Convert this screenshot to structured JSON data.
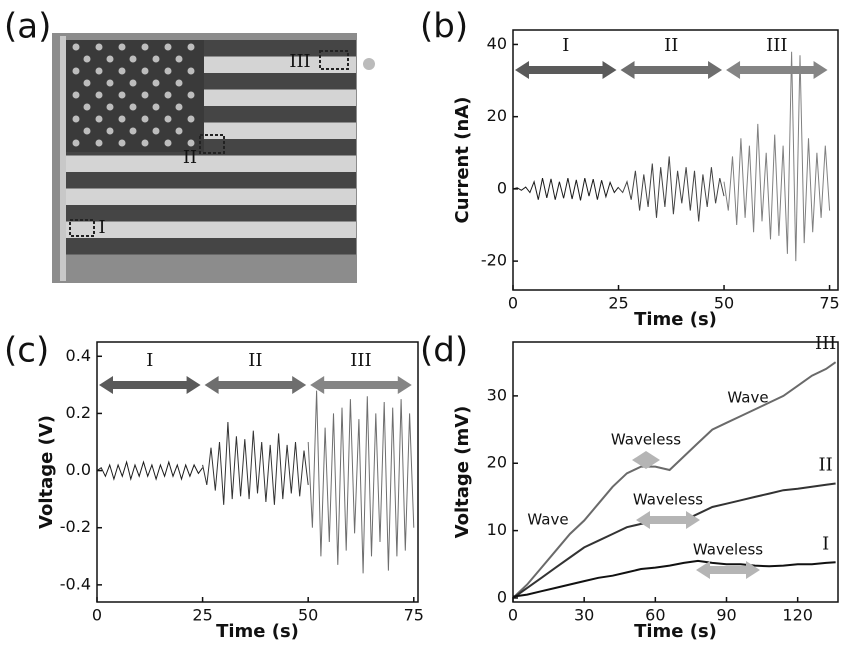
{
  "chart_data": [
    {
      "type": "image",
      "panel_label": "(a)",
      "region_labels": [
        "I",
        "II",
        "III"
      ]
    },
    {
      "type": "line",
      "panel_label": "(b)",
      "xlabel": "Time (s)",
      "ylabel": "Current (nA)",
      "xlim": [
        0,
        77
      ],
      "ylim": [
        -28,
        44
      ],
      "xticks": [
        0,
        25,
        50,
        75
      ],
      "yticks": [
        -20,
        0,
        20,
        40
      ],
      "series_arrows": true,
      "series": [
        {
          "name": "I",
          "color": "#1a1a1a",
          "x": [
            0,
            1,
            2,
            3,
            4,
            5,
            6,
            7,
            8,
            9,
            10,
            11,
            12,
            13,
            14,
            15,
            16,
            17,
            18,
            19,
            20,
            21,
            22,
            23,
            24,
            25
          ],
          "values": [
            0,
            0.3,
            -0.4,
            0.5,
            -1,
            2,
            -3,
            3,
            -2.5,
            2.8,
            -3,
            2,
            -2.6,
            3,
            -2.8,
            2.5,
            -3.2,
            3,
            -2,
            2.7,
            -3,
            2.4,
            -2.2,
            1.8,
            -1,
            0.5
          ]
        },
        {
          "name": "II",
          "color": "#444444",
          "x": [
            25,
            26,
            27,
            28,
            29,
            30,
            31,
            32,
            33,
            34,
            35,
            36,
            37,
            38,
            39,
            40,
            41,
            42,
            43,
            44,
            45,
            46,
            47,
            48,
            49,
            50
          ],
          "values": [
            0.3,
            -1,
            2,
            -3,
            5,
            -6,
            4,
            -5,
            7,
            -8,
            6,
            -5,
            9,
            -7,
            5,
            -4,
            6,
            -6,
            5,
            -9,
            4,
            -5,
            6,
            -4,
            3,
            -2
          ]
        },
        {
          "name": "III",
          "color": "#808080",
          "x": [
            50,
            51,
            52,
            53,
            54,
            55,
            56,
            57,
            58,
            59,
            60,
            61,
            62,
            63,
            64,
            65,
            66,
            67,
            68,
            69,
            70,
            71,
            72,
            73,
            74,
            75
          ],
          "values": [
            2,
            -6,
            9,
            -10,
            14,
            -8,
            12,
            -12,
            18,
            -9,
            10,
            -14,
            15,
            -13,
            12,
            -18,
            38,
            -20,
            37,
            -15,
            14,
            -12,
            10,
            -8,
            12,
            -6
          ]
        }
      ]
    },
    {
      "type": "line",
      "panel_label": "(c)",
      "xlabel": "Time (s)",
      "ylabel": "Voltage (V)",
      "xlim": [
        0,
        76
      ],
      "ylim": [
        -0.46,
        0.45
      ],
      "xticks": [
        0,
        25,
        50,
        75
      ],
      "yticks": [
        -0.4,
        -0.2,
        {
          "value": 0,
          "label": "0.0"
        },
        0.2,
        0.4
      ],
      "series_arrows": true,
      "series": [
        {
          "name": "I",
          "color": "#1a1a1a",
          "x": [
            0,
            1,
            2,
            3,
            4,
            5,
            6,
            7,
            8,
            9,
            10,
            11,
            12,
            13,
            14,
            15,
            16,
            17,
            18,
            19,
            20,
            21,
            22,
            23,
            24,
            25
          ],
          "values": [
            0,
            0.01,
            -0.02,
            0.02,
            -0.03,
            0.02,
            -0.02,
            0.03,
            -0.03,
            0.02,
            -0.02,
            0.03,
            -0.02,
            0.02,
            -0.03,
            0.02,
            -0.02,
            0.03,
            -0.02,
            0.02,
            -0.03,
            0.02,
            -0.02,
            0.02,
            -0.01,
            0.01
          ]
        },
        {
          "name": "II",
          "color": "#333333",
          "x": [
            25,
            26,
            27,
            28,
            29,
            30,
            31,
            32,
            33,
            34,
            35,
            36,
            37,
            38,
            39,
            40,
            41,
            42,
            43,
            44,
            45,
            46,
            47,
            48,
            49,
            50
          ],
          "values": [
            0.02,
            -0.05,
            0.08,
            -0.07,
            0.1,
            -0.12,
            0.17,
            -0.1,
            0.12,
            -0.09,
            0.11,
            -0.1,
            0.14,
            -0.08,
            0.1,
            -0.11,
            0.09,
            -0.12,
            0.13,
            -0.1,
            0.09,
            -0.08,
            0.1,
            -0.09,
            0.07,
            -0.05
          ]
        },
        {
          "name": "III",
          "color": "#6e6e6e",
          "x": [
            50,
            51,
            52,
            53,
            54,
            55,
            56,
            57,
            58,
            59,
            60,
            61,
            62,
            63,
            64,
            65,
            66,
            67,
            68,
            69,
            70,
            71,
            72,
            73,
            74,
            75
          ],
          "values": [
            0.1,
            -0.2,
            0.28,
            -0.3,
            0.15,
            -0.25,
            0.2,
            -0.33,
            0.22,
            -0.28,
            0.25,
            -0.22,
            0.18,
            -0.36,
            0.26,
            -0.3,
            0.2,
            -0.25,
            0.24,
            -0.35,
            0.22,
            -0.3,
            0.25,
            -0.28,
            0.2,
            -0.2
          ]
        }
      ]
    },
    {
      "type": "line",
      "panel_label": "(d)",
      "xlabel": "Time (s)",
      "ylabel": "Voltage (mV)",
      "xlim": [
        0,
        137
      ],
      "ylim": [
        -0.6,
        38
      ],
      "xticks": [
        0,
        30,
        60,
        90,
        120
      ],
      "yticks": [
        0,
        10,
        20,
        30
      ],
      "series_end_labels": true,
      "annotations": [
        "Wave",
        "Waveless",
        "Waveless",
        "Waveless",
        "Wave"
      ],
      "series": [
        {
          "name": "III",
          "color": "#6a6a6a",
          "x": [
            0,
            6,
            12,
            18,
            24,
            30,
            36,
            42,
            48,
            54,
            60,
            66,
            72,
            78,
            84,
            90,
            96,
            102,
            108,
            114,
            120,
            126,
            132,
            136
          ],
          "values": [
            0,
            2,
            4.5,
            7,
            9.5,
            11.5,
            14,
            16.5,
            18.5,
            19.5,
            19.5,
            19,
            21,
            23,
            25,
            26,
            27,
            28,
            29,
            30,
            31.5,
            33,
            34,
            35
          ]
        },
        {
          "name": "II",
          "color": "#333333",
          "x": [
            0,
            6,
            12,
            18,
            24,
            30,
            36,
            42,
            48,
            54,
            60,
            66,
            72,
            78,
            84,
            90,
            96,
            102,
            108,
            114,
            120,
            126,
            132,
            136
          ],
          "values": [
            0,
            1.5,
            3,
            4.5,
            6,
            7.5,
            8.5,
            9.5,
            10.5,
            11,
            11.2,
            11.3,
            11.5,
            12.5,
            13.5,
            14,
            14.5,
            15,
            15.5,
            16,
            16.2,
            16.5,
            16.8,
            17
          ]
        },
        {
          "name": "I",
          "color": "#111111",
          "x": [
            0,
            6,
            12,
            18,
            24,
            30,
            36,
            42,
            48,
            54,
            60,
            66,
            72,
            78,
            84,
            90,
            96,
            102,
            108,
            114,
            120,
            126,
            132,
            136
          ],
          "values": [
            0.2,
            0.5,
            1,
            1.5,
            2,
            2.5,
            3,
            3.3,
            3.8,
            4.3,
            4.5,
            4.8,
            5.2,
            5.5,
            5.2,
            5,
            5,
            4.8,
            4.7,
            4.8,
            5,
            5,
            5.2,
            5.3
          ]
        }
      ]
    }
  ]
}
